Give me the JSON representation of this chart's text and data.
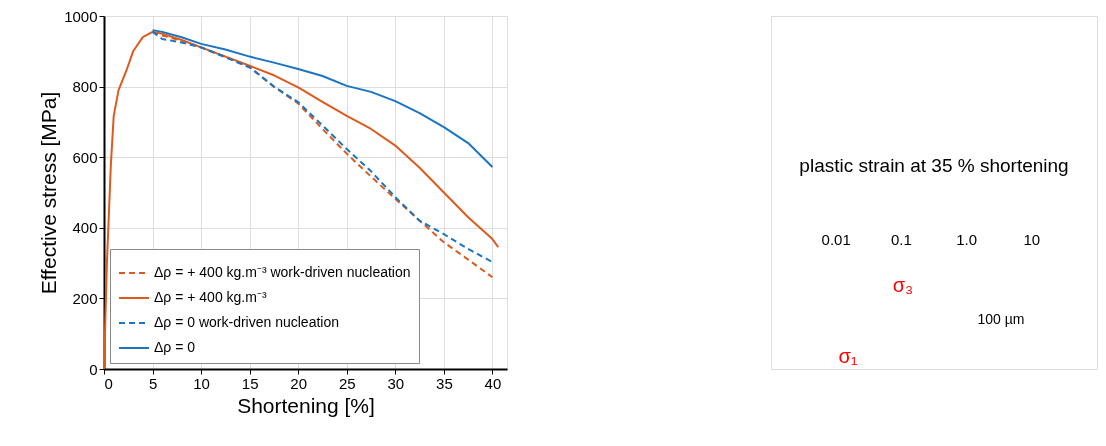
{
  "chart_data": [
    {
      "type": "line",
      "xlabel": "Shortening [%]",
      "ylabel": "Effective stress [MPa]",
      "xlim": [
        0,
        41.5
      ],
      "xticks": [
        0,
        5,
        10,
        15,
        20,
        25,
        30,
        35,
        40
      ],
      "ylim": [
        0,
        1000
      ],
      "yticks": [
        0,
        200,
        400,
        600,
        800,
        1000
      ],
      "grid": true,
      "legend": "bottom left",
      "series": [
        {
          "name": "Δρ = + 400 kg.m⁻³ work-driven nucleation",
          "color": "#dd5a1f",
          "line_style": "dashed",
          "x": [
            5,
            6,
            8,
            10,
            12.5,
            15,
            17.5,
            20,
            22.5,
            25,
            27.5,
            30,
            32.5,
            35,
            37.5,
            40
          ],
          "values": [
            955,
            945,
            930,
            911,
            885,
            856,
            800,
            752,
            680,
            610,
            545,
            482,
            420,
            359,
            310,
            260
          ]
        },
        {
          "name": "Δρ = + 400 kg.m⁻³",
          "color": "#dd5a1f",
          "line_style": "solid",
          "x": [
            0,
            0.3,
            0.7,
            1,
            1.5,
            2.3,
            3,
            4,
            5,
            6,
            8,
            10,
            12.5,
            15,
            17.5,
            20,
            22.5,
            25,
            27.5,
            30,
            32.5,
            35,
            37.5,
            40,
            40.6
          ],
          "values": [
            0,
            300,
            575,
            717,
            790,
            845,
            900,
            940,
            955,
            950,
            932,
            911,
            885,
            859,
            832,
            798,
            757,
            717,
            680,
            633,
            570,
            500,
            430,
            368,
            345
          ]
        },
        {
          "name": "Δρ = 0 work-driven nucleation",
          "color": "#1a75c2",
          "line_style": "dashed",
          "x": [
            5,
            6,
            8,
            10,
            12.5,
            15,
            17.5,
            20,
            22.5,
            25,
            27.5,
            30,
            32.5,
            35,
            37.5,
            40
          ],
          "values": [
            955,
            935,
            925,
            911,
            883,
            854,
            800,
            756,
            690,
            623,
            560,
            487,
            420,
            382,
            340,
            303
          ]
        },
        {
          "name": "Δρ = 0",
          "color": "#1a75c2",
          "line_style": "solid",
          "x": [
            5,
            6,
            8,
            10,
            12.5,
            15,
            17.5,
            20,
            22.5,
            25,
            27.5,
            30,
            32.5,
            35,
            37.5,
            40
          ],
          "values": [
            960,
            955,
            940,
            921,
            905,
            885,
            868,
            850,
            830,
            802,
            785,
            759,
            725,
            685,
            640,
            572
          ]
        }
      ]
    },
    {
      "type": "other",
      "clabel": "plastic strain at 35 % shortening",
      "annotations": [
        "0.01",
        "0.1",
        "1.0",
        "10",
        "σ₃",
        "σ₁",
        "100 µm"
      ]
    }
  ]
}
